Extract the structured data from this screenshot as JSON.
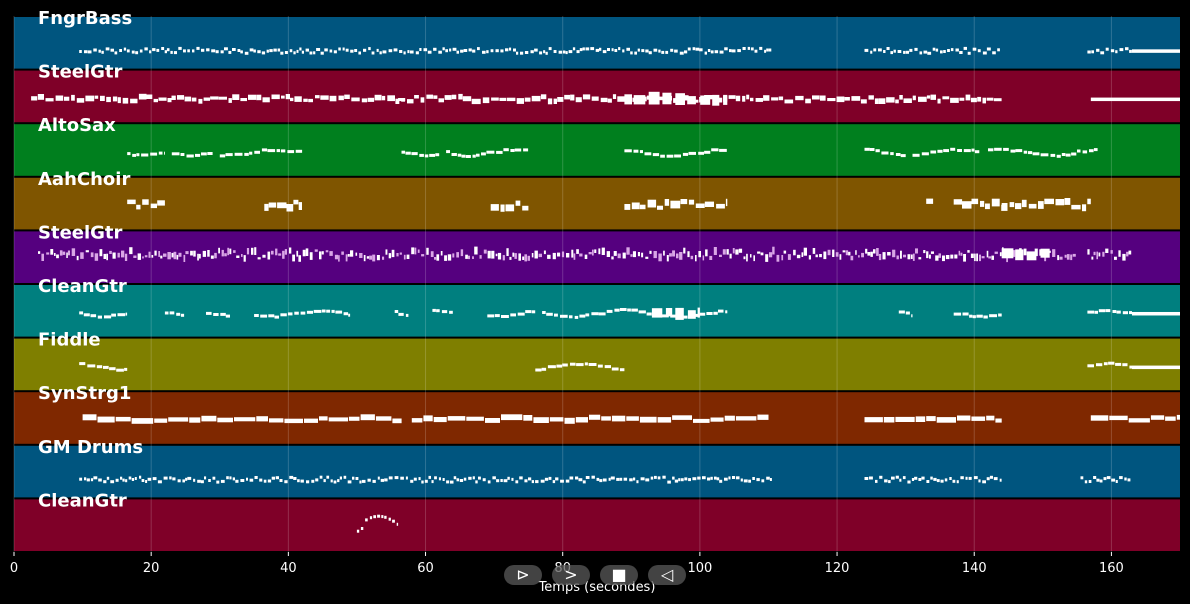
{
  "chart_data": {
    "type": "piano-roll",
    "xlabel": "Temps (secondes)",
    "xlim": [
      0,
      170
    ],
    "xticks": [
      0,
      20,
      40,
      60,
      80,
      100,
      120,
      140,
      160
    ],
    "grid": true,
    "tracks": [
      {
        "name": "FngrBass",
        "color": "#00557f",
        "style": "dense-small",
        "segments": [
          [
            9.5,
            110.5
          ],
          [
            124,
            144
          ],
          [
            156.5,
            163
          ]
        ],
        "sustain": [
          [
            163,
            170
          ]
        ],
        "level": 0.65
      },
      {
        "name": "SteelGtr",
        "color": "#7f0028",
        "style": "chords",
        "segments": [
          [
            2.5,
            57
          ],
          [
            56,
            144
          ]
        ],
        "blocks": [
          [
            89,
            104
          ]
        ],
        "sustain": [
          [
            157,
            170
          ]
        ],
        "level": 0.55
      },
      {
        "name": "AltoSax",
        "color": "#007f1e",
        "style": "phrases",
        "segments": [
          [
            16.5,
            22
          ],
          [
            23,
            29
          ],
          [
            30,
            42
          ],
          [
            56.5,
            62
          ],
          [
            63,
            75
          ],
          [
            89,
            104
          ],
          [
            124,
            130
          ],
          [
            131,
            141
          ],
          [
            142,
            158
          ]
        ],
        "level": 0.55
      },
      {
        "name": "AahChoir",
        "color": "#7f5500",
        "style": "blocky",
        "segments": [
          [
            16.5,
            22
          ],
          [
            36.5,
            42
          ],
          [
            69.5,
            75
          ],
          [
            89,
            104
          ],
          [
            133,
            134
          ],
          [
            137,
            144
          ],
          [
            144,
            157
          ]
        ],
        "level": 0.52
      },
      {
        "name": "SteelGtr",
        "color": "#55007f",
        "style": "dense-arp",
        "segments": [
          [
            3.5,
            155
          ],
          [
            156.5,
            163
          ]
        ],
        "blocks": [
          [
            144,
            151
          ]
        ],
        "level": 0.45
      },
      {
        "name": "CleanGtr",
        "color": "#007f7f",
        "style": "phrases",
        "segments": [
          [
            9.5,
            16.5
          ],
          [
            22,
            25
          ],
          [
            28,
            31.5
          ],
          [
            35,
            49
          ],
          [
            55.5,
            57.5
          ],
          [
            61,
            64
          ],
          [
            69,
            76
          ],
          [
            77,
            104
          ],
          [
            129,
            131
          ],
          [
            137,
            144
          ],
          [
            156.5,
            163
          ]
        ],
        "blocks": [
          [
            93,
            100
          ]
        ],
        "sustain": [
          [
            163,
            170
          ]
        ],
        "level": 0.55
      },
      {
        "name": "Fiddle",
        "color": "#7f7f00",
        "style": "phrases",
        "segments": [
          [
            9.5,
            16.5
          ],
          [
            76,
            89
          ],
          [
            156.5,
            163
          ]
        ],
        "sustain": [
          [
            163,
            170
          ]
        ],
        "level": 0.55
      },
      {
        "name": "SynStrg1",
        "color": "#7f2800",
        "style": "sustained",
        "segments": [
          [
            10,
            56.5
          ],
          [
            58,
            110
          ],
          [
            124,
            144
          ],
          [
            157,
            170
          ]
        ],
        "level": 0.52
      },
      {
        "name": "GM Drums",
        "color": "#00557f",
        "style": "dense-small",
        "segments": [
          [
            9.5,
            110.5
          ],
          [
            124,
            144
          ],
          [
            155.5,
            163
          ]
        ],
        "level": 0.65
      },
      {
        "name": "CleanGtr",
        "color": "#7f0028",
        "style": "arc",
        "segments": [
          [
            50,
            56
          ]
        ],
        "level": 0.5
      }
    ]
  },
  "controls": {
    "play_label": "⊳",
    "forward_label": ">",
    "stop_label": "■",
    "back_label": "◁"
  }
}
